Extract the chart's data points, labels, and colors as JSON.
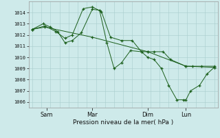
{
  "background_color": "#ceeaea",
  "grid_color": "#a8cccc",
  "line_color": "#1a5e1a",
  "marker_color": "#1a5e1a",
  "title": "Pression niveau de la mer( hPa )",
  "ylim": [
    1005.5,
    1015.0
  ],
  "yticks": [
    1006,
    1007,
    1008,
    1009,
    1010,
    1011,
    1012,
    1013,
    1014
  ],
  "xtick_labels": [
    "Sam",
    "Mar",
    "Dim",
    "Lun"
  ],
  "xtick_positions": [
    0.08,
    0.33,
    0.635,
    0.845
  ],
  "series": [
    {
      "x": [
        0.0,
        0.07,
        0.33,
        0.635,
        0.845,
        1.0
      ],
      "y": [
        1012.5,
        1012.7,
        1011.8,
        1010.5,
        1009.2,
        1009.1
      ]
    },
    {
      "x": [
        0.0,
        0.07,
        0.13,
        0.18,
        0.22,
        0.28,
        0.33,
        0.38,
        0.43,
        0.49,
        0.55,
        0.6,
        0.635,
        0.67,
        0.72,
        0.76,
        0.845,
        0.88,
        0.93,
        1.0
      ],
      "y": [
        1012.5,
        1012.8,
        1012.3,
        1011.7,
        1012.0,
        1014.35,
        1014.5,
        1014.1,
        1011.8,
        1011.5,
        1011.5,
        1010.5,
        1010.5,
        1010.5,
        1010.5,
        1009.8,
        1009.2,
        1009.2,
        1009.2,
        1009.2
      ]
    },
    {
      "x": [
        0.0,
        0.06,
        0.1,
        0.14,
        0.18,
        0.22,
        0.27,
        0.33,
        0.37,
        0.41,
        0.45,
        0.49,
        0.54,
        0.6,
        0.635,
        0.67,
        0.71,
        0.75,
        0.795,
        0.83,
        0.845,
        0.87,
        0.92,
        0.96,
        1.0
      ],
      "y": [
        1012.5,
        1013.0,
        1012.7,
        1012.3,
        1011.3,
        1011.5,
        1012.2,
        1014.3,
        1014.2,
        1011.3,
        1009.0,
        1009.5,
        1010.6,
        1010.5,
        1010.0,
        1009.8,
        1009.0,
        1007.5,
        1006.2,
        1006.2,
        1006.2,
        1007.0,
        1007.5,
        1008.5,
        1009.1
      ]
    }
  ]
}
